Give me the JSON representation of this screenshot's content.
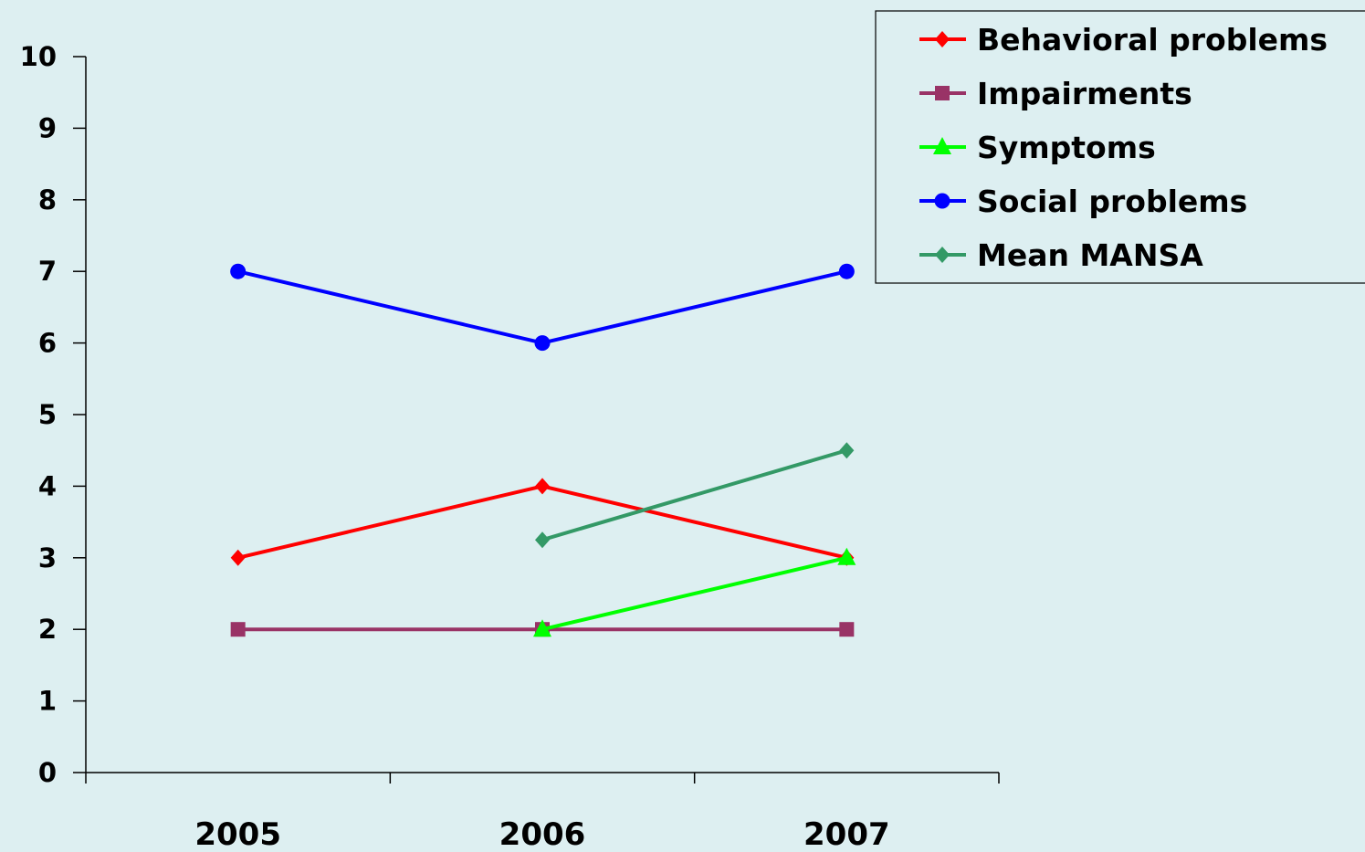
{
  "chart_data": {
    "type": "line",
    "title": "",
    "xlabel": "",
    "ylabel": "",
    "categories": [
      "2005",
      "2006",
      "2007"
    ],
    "ylim": [
      0,
      10
    ],
    "yticks": [
      "0",
      "1",
      "2",
      "3",
      "4",
      "5",
      "6",
      "7",
      "8",
      "9",
      "10"
    ],
    "grid": false,
    "legend_position": "top-right",
    "series": [
      {
        "name": "Behavioral problems",
        "color": "#ff0000",
        "marker": "diamond",
        "values": [
          3,
          4,
          3
        ]
      },
      {
        "name": "Impairments",
        "color": "#993366",
        "marker": "square",
        "values": [
          2,
          2,
          2
        ]
      },
      {
        "name": "Symptoms",
        "color": "#00ff00",
        "marker": "triangle",
        "values": [
          null,
          2,
          3
        ]
      },
      {
        "name": "Social problems",
        "color": "#0000ff",
        "marker": "circle",
        "values": [
          7,
          6,
          7
        ]
      },
      {
        "name": "Mean MANSA",
        "color": "#339966",
        "marker": "diamond",
        "values": [
          null,
          3.25,
          4.5
        ]
      }
    ]
  }
}
